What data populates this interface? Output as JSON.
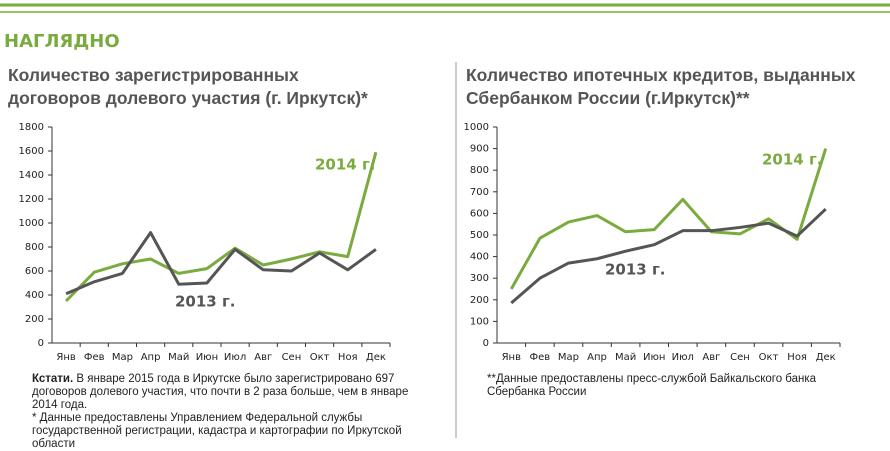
{
  "header": "НАГЛЯДНО",
  "chart_data": [
    {
      "type": "line",
      "title": [
        "Количество зарегистрированных",
        "договоров долевого участия (г. Иркутск)*"
      ],
      "categories": [
        "Янв",
        "Фев",
        "Мар",
        "Апр",
        "Май",
        "Июн",
        "Июл",
        "Авг",
        "Сен",
        "Окт",
        "Ноя",
        "Дек"
      ],
      "series": [
        {
          "name": "2014 г.",
          "color": "#7aab3e",
          "values": [
            350,
            590,
            660,
            700,
            580,
            620,
            790,
            650,
            700,
            760,
            720,
            1590
          ]
        },
        {
          "name": "2013 г.",
          "color": "#555555",
          "values": [
            410,
            510,
            580,
            920,
            490,
            500,
            780,
            610,
            600,
            750,
            610,
            780
          ]
        }
      ],
      "ylim": [
        0,
        1800
      ],
      "yticks": [
        0,
        200,
        400,
        600,
        800,
        1000,
        1200,
        1400,
        1600,
        1800
      ],
      "note_lead": "Кстати.",
      "note": "В январе 2015 года в Иркутске было зарегистрировано 697 договоров долевого участия, что почти в 2 раза больше, чем в январе 2014 года.",
      "footnote": "* Данные предоставлены Управлением Федеральной службы государственной регистрации, кадастра и картографии по Иркутской области"
    },
    {
      "type": "line",
      "title": [
        "Количество ипотечных кредитов, выданных",
        "Сбербанком России (г.Иркутск)**"
      ],
      "categories": [
        "Янв",
        "Фев",
        "Мар",
        "Апр",
        "Май",
        "Июн",
        "Июл",
        "Авг",
        "Сен",
        "Окт",
        "Ноя",
        "Дек"
      ],
      "series": [
        {
          "name": "2014 г.",
          "color": "#7aab3e",
          "values": [
            250,
            485,
            560,
            590,
            515,
            525,
            665,
            515,
            505,
            575,
            480,
            900
          ]
        },
        {
          "name": "2013 г.",
          "color": "#555555",
          "values": [
            185,
            300,
            370,
            390,
            425,
            455,
            520,
            520,
            535,
            555,
            495,
            620
          ]
        }
      ],
      "ylim": [
        0,
        1000
      ],
      "yticks": [
        0,
        100,
        200,
        300,
        400,
        500,
        600,
        700,
        800,
        900,
        1000
      ],
      "footnote": "**Данные предоставлены пресс-службой Байкальского банка Сбербанка России"
    }
  ]
}
